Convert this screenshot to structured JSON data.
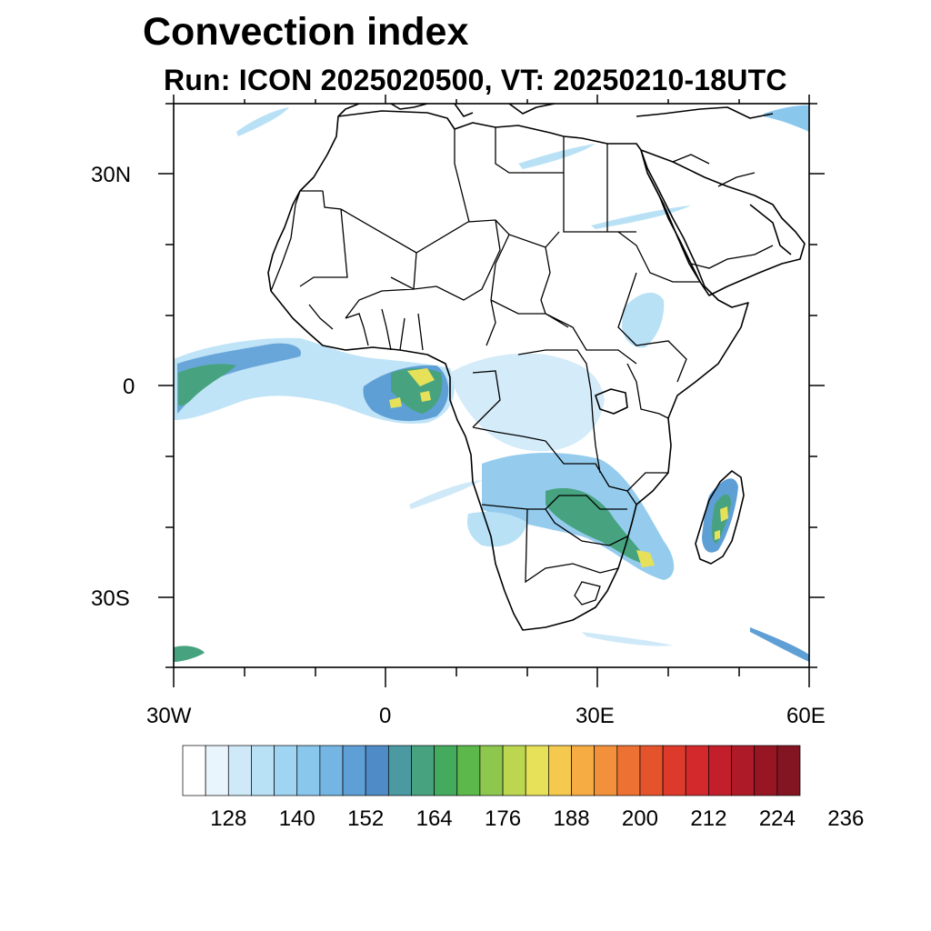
{
  "title": "Convection index",
  "subtitle": "Run: ICON 2025020500,  VT: 20250210-18UTC",
  "y_axis_labels": [
    "30N",
    "0",
    "30S"
  ],
  "x_axis_labels": [
    "30W",
    "0",
    "30E",
    "60E"
  ],
  "colorbar": {
    "colors": [
      "#ffffff",
      "#e9f5fc",
      "#cfe9f8",
      "#b9e1f6",
      "#9fd5f3",
      "#8ac7ec",
      "#74b5e3",
      "#5e9fd6",
      "#4f8cc7",
      "#4b9aa2",
      "#47a37f",
      "#44ab5e",
      "#5cb84a",
      "#8dc74d",
      "#bcd650",
      "#e6e158",
      "#f5c94e",
      "#f6ac43",
      "#f2903b",
      "#ec7133",
      "#e5532d",
      "#dd3a2b",
      "#d3282c",
      "#c21e2b",
      "#ae1a28",
      "#981624",
      "#831421"
    ],
    "tick_labels": [
      "128",
      "140",
      "152",
      "164",
      "176",
      "188",
      "200",
      "212",
      "224",
      "236"
    ]
  }
}
